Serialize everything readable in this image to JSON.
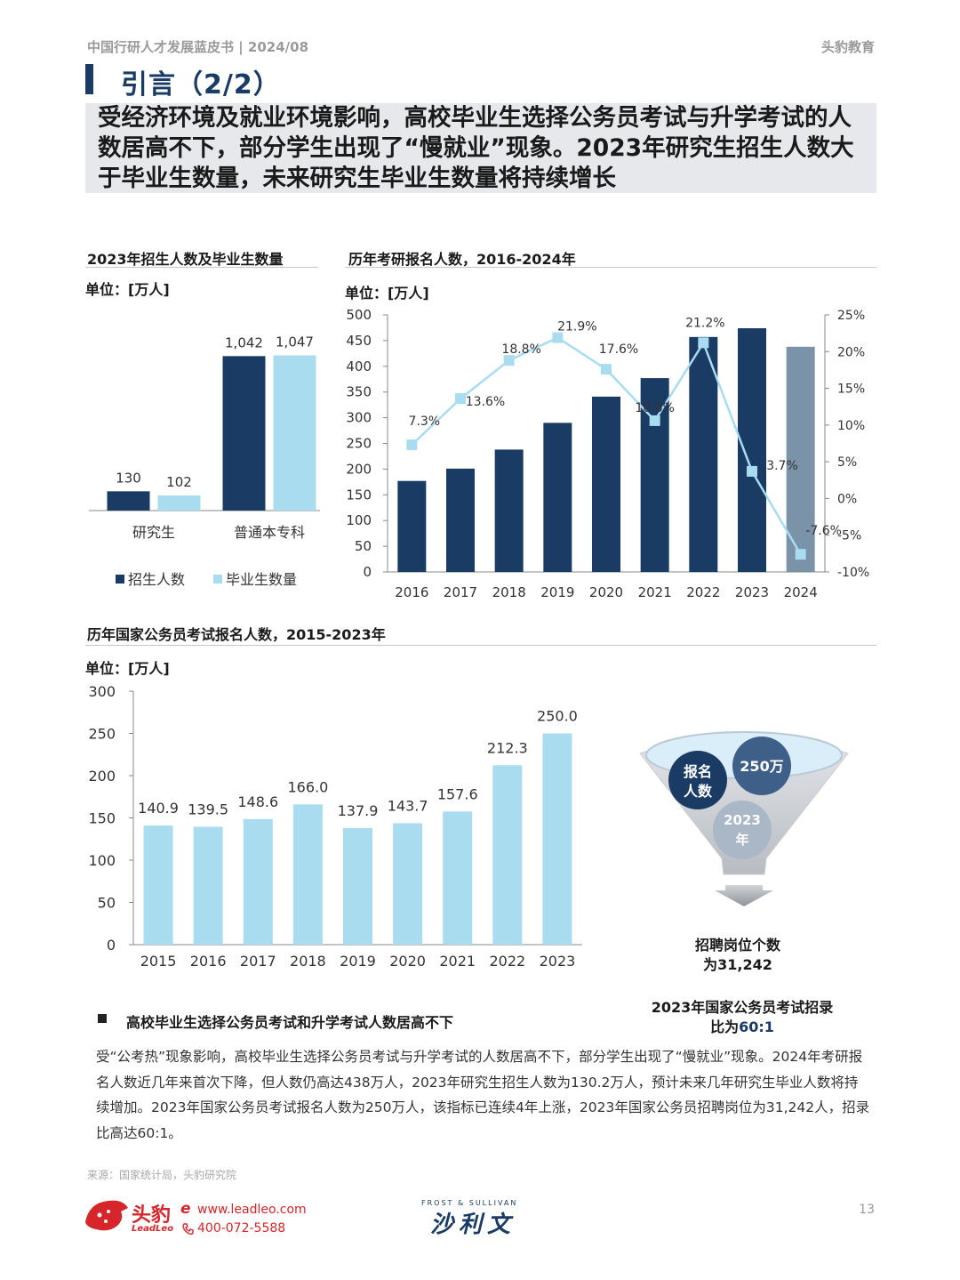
{
  "header": {
    "left": "中国行研人才发展蓝皮书 | 2024/08",
    "right": "头豹教育"
  },
  "title": "引言（2/2）",
  "summary": "受经济环境及就业环境影响，高校毕业生选择公务员考试与升学考试的人数居高不下，部分学生出现了“慢就业”现象。2023年研究生招生人数大于毕业生数量，未来研究生毕业生数量将持续增长",
  "chart1": {
    "title": "2023年招生人数及毕业生数量",
    "unit": "单位：[万人]",
    "legend": [
      "招生人数",
      "毕业生数量"
    ]
  },
  "chart2": {
    "title": "历年考研报名人数，2016-2024年",
    "unit": "单位：[万人]"
  },
  "chart3": {
    "title": "历年国家公务员考试报名人数，2015-2023年",
    "unit": "单位：[万人]"
  },
  "chart_data": [
    {
      "type": "bar",
      "title": "2023年招生人数及毕业生数量",
      "categories": [
        "研究生",
        "普通本专科"
      ],
      "series": [
        {
          "name": "招生人数",
          "values": [
            130,
            1042
          ],
          "labels": [
            "130",
            "1,042"
          ]
        },
        {
          "name": "毕业生数量",
          "values": [
            102,
            1047
          ],
          "labels": [
            "102",
            "1,047"
          ]
        }
      ],
      "ylim": [
        0,
        1200
      ],
      "colors": [
        "#1a3b64",
        "#a8dcee"
      ]
    },
    {
      "type": "bar",
      "title": "历年考研报名人数，2016-2024年",
      "categories": [
        "2016",
        "2017",
        "2018",
        "2019",
        "2020",
        "2021",
        "2022",
        "2023",
        "2024"
      ],
      "values": [
        177,
        201,
        238,
        290,
        341,
        377,
        457,
        474,
        438
      ],
      "ylim": [
        0,
        500
      ],
      "yticks": [
        "500",
        "450",
        "400",
        "350",
        "300",
        "250",
        "200",
        "150",
        "100",
        "50",
        "0"
      ],
      "growth": {
        "values": [
          7.3,
          13.6,
          18.8,
          21.9,
          17.6,
          10.6,
          21.2,
          3.7,
          -7.6
        ],
        "labels": [
          "7.3%",
          "13.6%",
          "18.8%",
          "21.9%",
          "17.6%",
          "10.6%",
          "21.2%",
          "3.7%",
          "-7.6%"
        ],
        "ylim": [
          -10,
          25
        ],
        "yticks": [
          "25%",
          "20%",
          "15%",
          "10%",
          "5%",
          "0%",
          "-5%",
          "-10%"
        ]
      },
      "colors": {
        "bar": "#1a3b64",
        "bar_last": "#7a93a8",
        "line": "#a8dcee"
      }
    },
    {
      "type": "bar",
      "title": "历年国家公务员考试报名人数，2015-2023年",
      "categories": [
        "2015",
        "2016",
        "2017",
        "2018",
        "2019",
        "2020",
        "2021",
        "2022",
        "2023"
      ],
      "values": [
        140.9,
        139.5,
        148.6,
        166.0,
        137.9,
        143.7,
        157.6,
        212.3,
        250.0
      ],
      "labels": [
        "140.9",
        "139.5",
        "148.6",
        "166.0",
        "137.9",
        "143.7",
        "157.6",
        "212.3",
        "250.0"
      ],
      "ylim": [
        0,
        300
      ],
      "yticks": [
        "300",
        "250",
        "200",
        "150",
        "100",
        "50",
        "0"
      ],
      "colors": {
        "bar": "#a8dcee"
      }
    }
  ],
  "funnel": {
    "circle1": "报名\n人数",
    "circle2": "250万",
    "circle3": "2023\n年",
    "posts": "招聘岗位个数\n为31,242",
    "ratio_line1": "2023年国家公务员考试招录",
    "ratio_prefix": "比为",
    "ratio_value": "60:1"
  },
  "bullet": {
    "heading": "高校毕业生选择公务员考试和升学考试人数居高不下",
    "body": "受“公考热”现象影响，高校毕业生选择公务员考试与升学考试的人数居高不下，部分学生出现了“慢就业”现象。2024年考研报名人数近几年来首次下降，但人数仍高达438万人，2023年研究生招生人数为130.2万人，预计未来几年研究生毕业人数将持续增加。2023年国家公务员考试报名人数为250万人，该指标已连续4年上涨，2023年国家公务员招聘岗位为31,242人，招录比高达60:1。"
  },
  "source": "来源：国家统计局，头豹研究院",
  "footer": {
    "brand": "头豹",
    "brand_en": "LeadLeo",
    "website": "www.leadleo.com",
    "phone": "400-072-5588",
    "partner_en": "FROST & SULLIVAN",
    "partner_cn": "沙利文",
    "page": "13"
  }
}
